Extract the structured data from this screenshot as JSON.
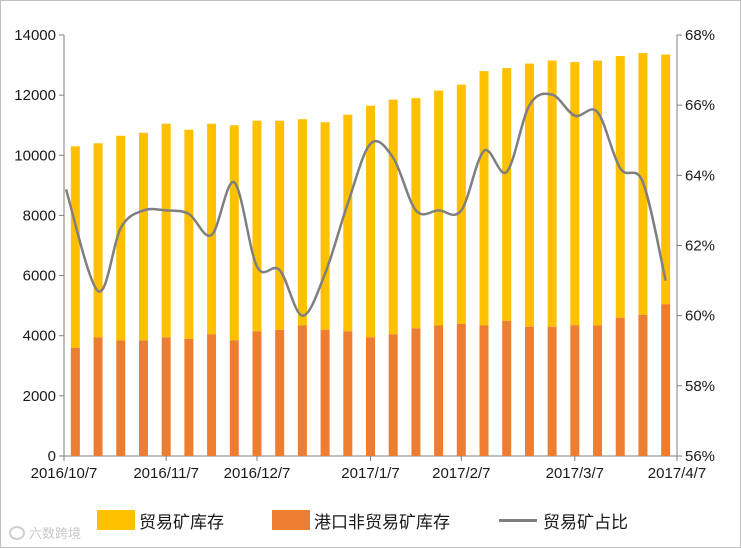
{
  "chart_data": {
    "type": "bar",
    "stacked": true,
    "categories": [
      "2016/10/7",
      "2016/10/14",
      "2016/10/21",
      "2016/10/28",
      "2016/11/4",
      "2016/11/11",
      "2016/11/18",
      "2016/11/25",
      "2016/12/2",
      "2016/12/9",
      "2016/12/16",
      "2016/12/23",
      "2016/12/30",
      "2017/1/6",
      "2017/1/13",
      "2017/1/20",
      "2017/1/27",
      "2017/2/3",
      "2017/2/10",
      "2017/2/17",
      "2017/2/24",
      "2017/3/3",
      "2017/3/10",
      "2017/3/17",
      "2017/3/24",
      "2017/3/31",
      "2017/4/7"
    ],
    "x_tick_labels": [
      "2016/10/7",
      "2016/11/7",
      "2016/12/7",
      "2017/1/7",
      "2017/2/7",
      "2017/3/7",
      "2017/4/7"
    ],
    "series": [
      {
        "name": "港口非贸易矿库存",
        "axis": "left",
        "color": "#ED7D31",
        "values": [
          3600,
          3950,
          3850,
          3850,
          3950,
          3900,
          4050,
          3850,
          4150,
          4200,
          4350,
          4200,
          4150,
          3950,
          4050,
          4250,
          4350,
          4400,
          4350,
          4500,
          4300,
          4300,
          4350,
          4350,
          4600,
          4700,
          5050
        ]
      },
      {
        "name": "贸易矿库存",
        "axis": "left",
        "color": "#FFC000",
        "values": [
          6700,
          6450,
          6800,
          6900,
          7100,
          6950,
          7000,
          7150,
          7000,
          6950,
          6850,
          6900,
          7200,
          7700,
          7800,
          7650,
          7800,
          7950,
          8450,
          8400,
          8750,
          8850,
          8750,
          8800,
          8700,
          8700,
          8300
        ]
      },
      {
        "name": "贸易矿占比",
        "axis": "right",
        "type": "line",
        "color": "#7F7F7F",
        "values": [
          63.6,
          60.7,
          62.5,
          63.0,
          63.0,
          62.9,
          62.3,
          63.8,
          61.4,
          61.3,
          60.0,
          61.2,
          63.2,
          64.9,
          64.5,
          63.0,
          63.0,
          63.0,
          64.7,
          64.1,
          66.0,
          66.3,
          65.7,
          65.8,
          64.2,
          63.8,
          61.0
        ]
      }
    ],
    "ylim_left": [
      0,
      14000
    ],
    "yticks_left": [
      "0",
      "2000",
      "4000",
      "6000",
      "8000",
      "10000",
      "12000",
      "14000"
    ],
    "ylim_right": [
      56,
      68
    ],
    "yticks_right": [
      "56%",
      "58%",
      "60%",
      "62%",
      "64%",
      "66%",
      "68%"
    ],
    "legend": [
      "贸易矿库存",
      "港口非贸易矿库存",
      "贸易矿占比"
    ],
    "legend_position": "bottom"
  },
  "watermark": "六数跨境"
}
